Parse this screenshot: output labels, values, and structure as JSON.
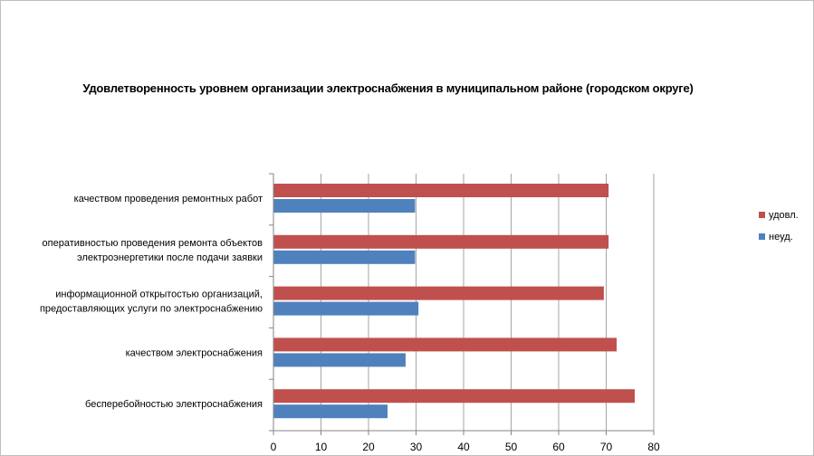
{
  "chart_data": {
    "type": "bar",
    "orientation": "horizontal",
    "title": "Удовлетворенность уровнем организации электроснабжения в муниципальном районе (городском округе)",
    "xlabel": "",
    "ylabel": "",
    "xlim": [
      0,
      80
    ],
    "ticks": [
      0,
      10,
      20,
      30,
      40,
      50,
      60,
      70,
      80
    ],
    "grid": true,
    "legend_position": "right",
    "categories": [
      [
        "качеством  проведения  ремонтных  работ"
      ],
      [
        "оперативностью  проведения  ремонта  объектов",
        "электроэнергетики  после подачи  заявки"
      ],
      [
        "информационной  открытостью  организаций,",
        "предоставляющих  услуги по  электроснабжению"
      ],
      [
        "качеством  электроснабжения"
      ],
      [
        "бесперебойностью  электроснабжения"
      ]
    ],
    "series": [
      {
        "name": "удовл.",
        "color": "#c0504d",
        "values": [
          70.5,
          70.5,
          69.5,
          72.2,
          76
        ]
      },
      {
        "name": "неуд.",
        "color": "#4f81bd",
        "values": [
          29.8,
          29.8,
          30.5,
          27.8,
          24
        ]
      }
    ]
  }
}
